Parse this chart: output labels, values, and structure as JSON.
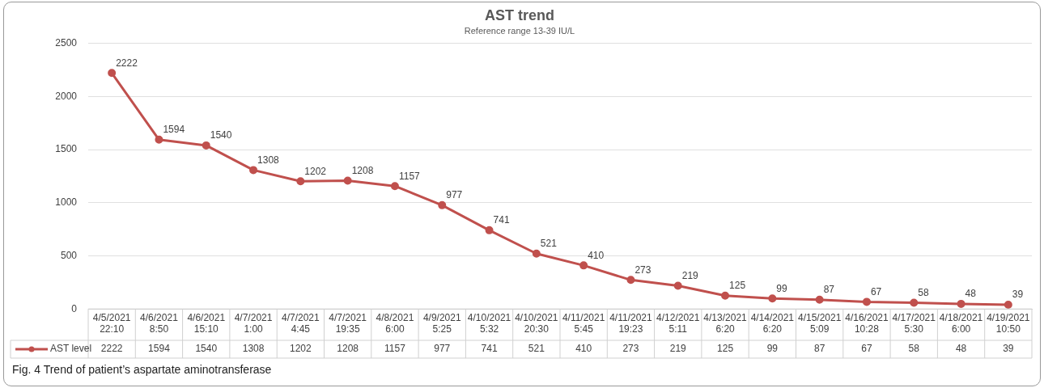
{
  "chart_data": {
    "type": "line",
    "title": "AST trend",
    "subtitle": "Reference range 13-39 IU/L",
    "categories": [
      "4/5/2021 22:10",
      "4/6/2021 8:50",
      "4/6/2021 15:10",
      "4/7/2021 1:00",
      "4/7/2021 4:45",
      "4/7/2021 19:35",
      "4/8/2021 6:00",
      "4/9/2021 5:25",
      "4/10/2021 5:32",
      "4/10/2021 20:30",
      "4/11/2021 5:45",
      "4/11/2021 19:23",
      "4/12/2021 5:11",
      "4/13/2021 6:20",
      "4/14/2021 6:20",
      "4/15/2021 5:09",
      "4/16/2021 10:28",
      "4/17/2021 5:30",
      "4/18/2021 6:00",
      "4/19/2021 10:50"
    ],
    "series": [
      {
        "name": "AST level",
        "color": "#c0504d",
        "values": [
          2222,
          1594,
          1540,
          1308,
          1202,
          1208,
          1157,
          977,
          741,
          521,
          410,
          273,
          219,
          125,
          99,
          87,
          67,
          58,
          48,
          39
        ]
      }
    ],
    "ylim": [
      0,
      2500
    ],
    "yticks": [
      0,
      500,
      1000,
      1500,
      2000,
      2500
    ],
    "grid": "y",
    "legend": "bottom",
    "marker": "circle",
    "line_style": "solid",
    "data_labels": true,
    "annotations": [
      {
        "text": "2222",
        "x": "4/5/2021 22:10",
        "y": 2222
      },
      {
        "text": "1594",
        "x": "4/6/2021 8:50",
        "y": 1594
      },
      {
        "text": "1540",
        "x": "4/6/2021 15:10",
        "y": 1540
      },
      {
        "text": "1308",
        "x": "4/7/2021 1:00",
        "y": 1308
      },
      {
        "text": "1202",
        "x": "4/7/2021 4:45",
        "y": 1202
      },
      {
        "text": "1208",
        "x": "4/7/2021 19:35",
        "y": 1208
      },
      {
        "text": "1157",
        "x": "4/8/2021 6:00",
        "y": 1157
      },
      {
        "text": "977",
        "x": "4/9/2021 5:25",
        "y": 977
      },
      {
        "text": "741",
        "x": "4/10/2021 5:32",
        "y": 741
      },
      {
        "text": "521",
        "x": "4/10/2021 20:30",
        "y": 521
      },
      {
        "text": "410",
        "x": "4/11/2021 5:45",
        "y": 410
      },
      {
        "text": "273",
        "x": "4/11/2021 19:23",
        "y": 273
      },
      {
        "text": "219",
        "x": "4/12/2021 5:11",
        "y": 219
      },
      {
        "text": "125",
        "x": "4/13/2021 6:20",
        "y": 125
      },
      {
        "text": "99",
        "x": "4/14/2021 6:20",
        "y": 99
      },
      {
        "text": "87",
        "x": "4/15/2021 5:09",
        "y": 87
      },
      {
        "text": "67",
        "x": "4/16/2021 10:28",
        "y": 67
      },
      {
        "text": "58",
        "x": "4/17/2021 5:30",
        "y": 58
      },
      {
        "text": "48",
        "x": "4/18/2021 6:00",
        "y": 48
      },
      {
        "text": "39",
        "x": "4/19/2021 10:50",
        "y": 39
      },
      "Fig. 4 Trend of patient’s aspartate aminotransferase"
    ]
  }
}
